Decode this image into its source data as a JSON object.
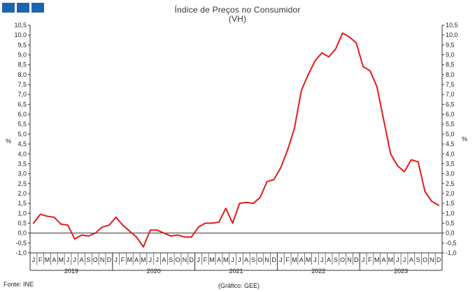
{
  "logo": {
    "name": "gee-logo"
  },
  "footer": {
    "source": "Fonte: INE",
    "credit": "(Gráfico: GEE)"
  },
  "chart_data": {
    "type": "line",
    "title": "Índice de Preços no Consumidor",
    "subtitle": "(VH)",
    "ylabel_left": "%",
    "ylabel_right": "%",
    "ylim": [
      -1.0,
      10.5
    ],
    "yticks": [
      "-1,0",
      "-0,5",
      "0,0",
      "0,5",
      "1,0",
      "1,5",
      "2,0",
      "2,5",
      "3,0",
      "3,5",
      "4,0",
      "4,5",
      "5,0",
      "5,5",
      "6,0",
      "6,5",
      "7,0",
      "7,5",
      "8,0",
      "8,5",
      "9,0",
      "9,5",
      "10,0",
      "10,5"
    ],
    "month_labels": [
      "J",
      "F",
      "M",
      "A",
      "M",
      "J",
      "J",
      "A",
      "S",
      "O",
      "N",
      "D"
    ],
    "years": [
      "2019",
      "2020",
      "2021",
      "2022",
      "2023"
    ],
    "grid": false,
    "series": [
      {
        "color": "#e31a1c",
        "values": [
          0.5,
          0.95,
          0.85,
          0.8,
          0.45,
          0.4,
          -0.3,
          -0.1,
          -0.15,
          0.0,
          0.3,
          0.4,
          0.8,
          0.4,
          0.1,
          -0.2,
          -0.7,
          0.15,
          0.15,
          0.0,
          -0.15,
          -0.1,
          -0.2,
          -0.2,
          0.3,
          0.5,
          0.5,
          0.55,
          1.25,
          0.5,
          1.5,
          1.55,
          1.5,
          1.8,
          2.6,
          2.7,
          3.3,
          4.2,
          5.3,
          7.2,
          8.0,
          8.7,
          9.1,
          8.9,
          9.3,
          10.1,
          9.9,
          9.6,
          8.4,
          8.2,
          7.4,
          5.7,
          4.0,
          3.4,
          3.1,
          3.7,
          3.6,
          2.1,
          1.6,
          1.4
        ]
      }
    ]
  }
}
